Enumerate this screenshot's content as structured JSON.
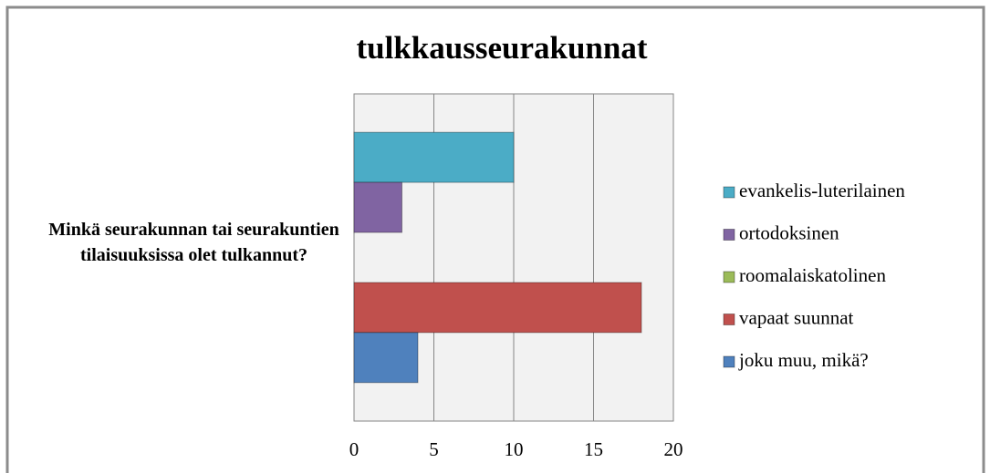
{
  "chart_data": {
    "type": "bar",
    "orientation": "horizontal",
    "title": "tulkkausseurakunnat",
    "categories": [
      "Minkä seurakunnan tai seurakuntien tilaisuuksissa olet tulkannut?"
    ],
    "series": [
      {
        "name": "evankelis-luterilainen",
        "color": "#4bacc6",
        "values": [
          10
        ]
      },
      {
        "name": "ortodoksinen",
        "color": "#8064a2",
        "values": [
          3
        ]
      },
      {
        "name": "roomalaiskatolinen",
        "color": "#9bbb59",
        "values": [
          0
        ]
      },
      {
        "name": "vapaat suunnat",
        "color": "#c0504d",
        "values": [
          18
        ]
      },
      {
        "name": "joku muu, mikä?",
        "color": "#4f81bd",
        "values": [
          4
        ]
      }
    ],
    "xlim": [
      0,
      20
    ],
    "xticks": [
      0,
      5,
      10,
      15,
      20
    ],
    "grid": true,
    "legend": "right"
  }
}
